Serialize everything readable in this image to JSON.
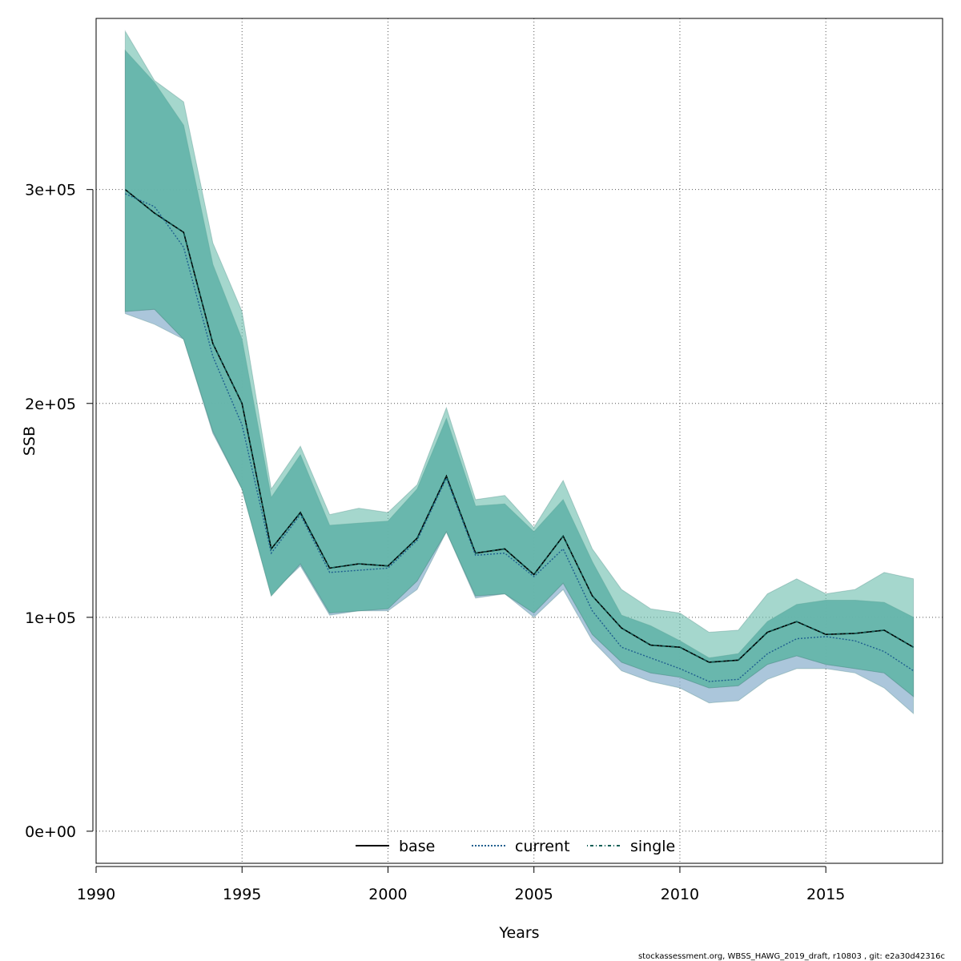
{
  "chart_data": {
    "type": "line",
    "xlabel": "Years",
    "ylabel": "SSB",
    "xlim": [
      1990,
      2019
    ],
    "ylim": [
      -15000,
      380000
    ],
    "x_ticks": [
      1990,
      1995,
      2000,
      2005,
      2010,
      2015
    ],
    "x_tick_labels": [
      "1990",
      "1995",
      "2000",
      "2005",
      "2010",
      "2015"
    ],
    "y_ticks": [
      0,
      100000,
      200000,
      300000
    ],
    "y_tick_labels": [
      "0e+00",
      "1e+05",
      "2e+05",
      "3e+05"
    ],
    "grid": true,
    "legend_position": "bottom-center",
    "x": [
      1991,
      1992,
      1993,
      1994,
      1995,
      1996,
      1997,
      1998,
      1999,
      2000,
      2001,
      2002,
      2003,
      2004,
      2005,
      2006,
      2007,
      2008,
      2009,
      2010,
      2011,
      2012,
      2013,
      2014,
      2015,
      2016,
      2017,
      2018
    ],
    "series": [
      {
        "name": "base",
        "line_style": "solid",
        "color": "#000000",
        "values": [
          300000,
          289000,
          280000,
          228000,
          200000,
          132000,
          149000,
          123000,
          125000,
          124000,
          137000,
          166000,
          130000,
          132000,
          120000,
          138000,
          110000,
          95000,
          87000,
          86000,
          79000,
          80000,
          93000,
          98000,
          92000,
          92500,
          94000,
          86000
        ],
        "band_lower": [
          243000,
          244000,
          230000,
          187000,
          160000,
          110000,
          125000,
          102000,
          103000,
          104000,
          117000,
          140000,
          110000,
          111000,
          102000,
          116000,
          92000,
          79000,
          74000,
          72000,
          67000,
          68000,
          78000,
          82000,
          78000,
          76000,
          74000,
          63000
        ],
        "band_upper": [
          365000,
          350000,
          330000,
          265000,
          230000,
          156000,
          176000,
          143000,
          144000,
          145000,
          160000,
          193000,
          152000,
          153000,
          140000,
          155000,
          126000,
          101000,
          96000,
          89000,
          81000,
          83000,
          98000,
          106000,
          108000,
          108000,
          107000,
          100000
        ]
      },
      {
        "name": "current",
        "line_style": "dotted",
        "color": "#1f5f8f",
        "values": [
          298000,
          292000,
          273000,
          222000,
          190000,
          130000,
          148000,
          121000,
          122000,
          123000,
          136000,
          165000,
          129000,
          130000,
          119000,
          132000,
          103000,
          86000,
          81000,
          76000,
          70000,
          71000,
          83000,
          90000,
          91000,
          89000,
          84000,
          75000
        ],
        "band_lower": [
          242000,
          237000,
          230000,
          186000,
          160000,
          111000,
          124000,
          101000,
          103000,
          103000,
          113000,
          140000,
          109000,
          111000,
          100000,
          113000,
          89000,
          75000,
          70000,
          67000,
          60000,
          61000,
          71000,
          76000,
          76000,
          74000,
          67000,
          55000
        ],
        "band_upper": [
          365000,
          350000,
          330000,
          265000,
          230000,
          156000,
          176000,
          143000,
          144000,
          145000,
          160000,
          193000,
          152000,
          153000,
          140000,
          155000,
          126000,
          101000,
          96000,
          89000,
          81000,
          83000,
          98000,
          106000,
          108000,
          108000,
          107000,
          100000
        ]
      },
      {
        "name": "single",
        "line_style": "dotdash",
        "color": "#0d5d55",
        "values": [
          300000,
          289000,
          280000,
          228000,
          200000,
          132000,
          149000,
          123000,
          125000,
          124000,
          137000,
          166000,
          130000,
          132000,
          120000,
          138000,
          110000,
          95000,
          87000,
          86000,
          79000,
          80000,
          93000,
          98000,
          92000,
          92500,
          94000,
          86000
        ],
        "band_lower": [
          243000,
          244000,
          230000,
          187000,
          160000,
          110000,
          125000,
          102000,
          103000,
          104000,
          117000,
          140000,
          110000,
          111000,
          102000,
          116000,
          92000,
          79000,
          74000,
          72000,
          67000,
          68000,
          78000,
          82000,
          78000,
          76000,
          74000,
          63000
        ],
        "band_upper": [
          374000,
          351000,
          341000,
          275000,
          243000,
          160000,
          180000,
          148000,
          151000,
          149000,
          162000,
          198000,
          155000,
          157000,
          142000,
          164000,
          132000,
          113000,
          104000,
          102000,
          93000,
          94000,
          111000,
          118000,
          111000,
          113000,
          121000,
          118000
        ]
      }
    ]
  },
  "colors": {
    "band_current": "#8fb3cf",
    "band_base": "#4aa19a",
    "band_single": "#6dbfae"
  },
  "footnote": "stockassessment.org, WBSS_HAWG_2019_draft, r10803 , git: e2a30d42316c"
}
